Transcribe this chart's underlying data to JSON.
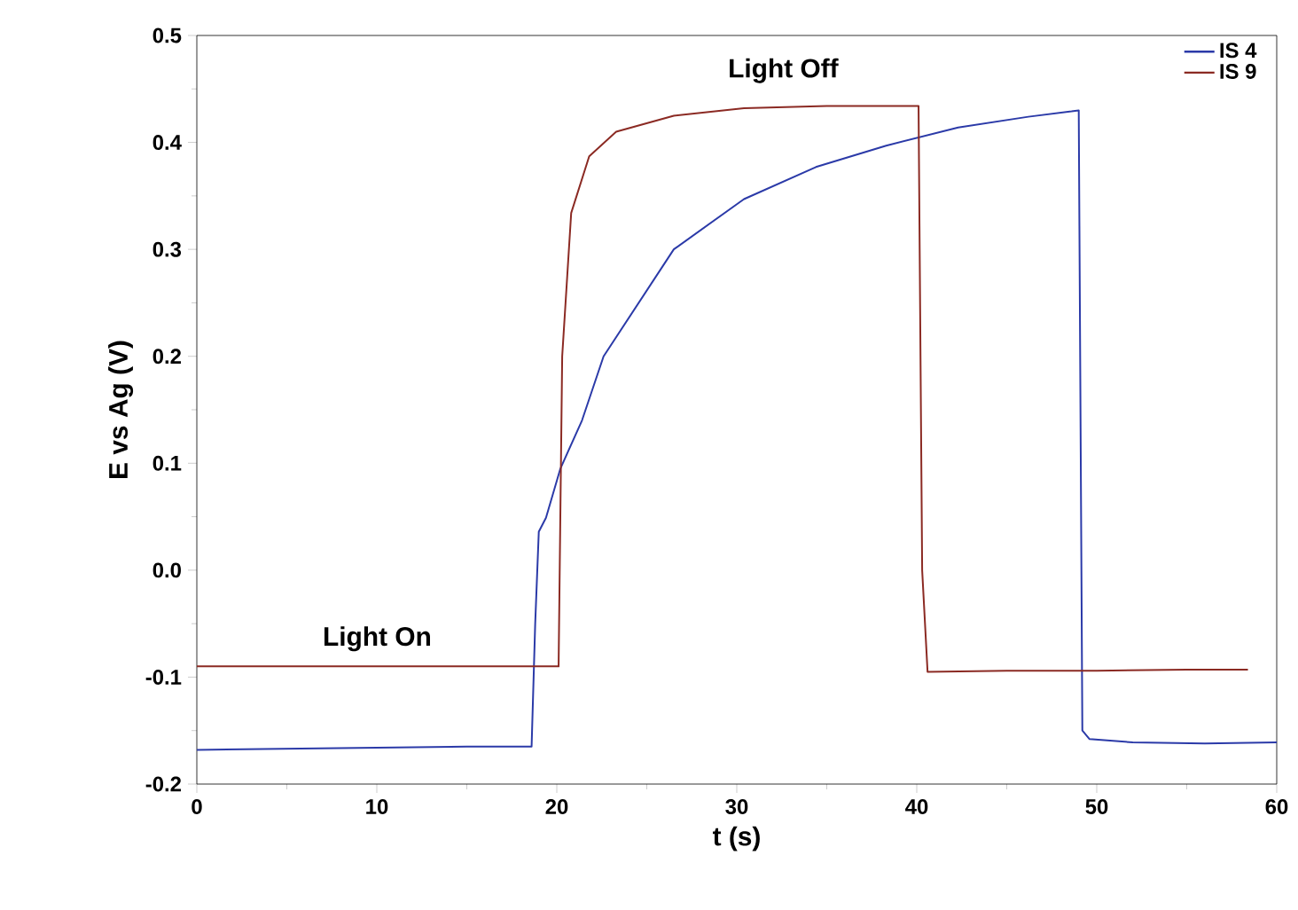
{
  "chart_data": {
    "type": "line",
    "xlabel": "t (s)",
    "ylabel": "E vs Ag (V)",
    "xlim": [
      0,
      60
    ],
    "xticks": [
      0,
      10,
      20,
      30,
      40,
      50,
      60
    ],
    "ylim": [
      -0.2,
      0.5
    ],
    "yticks": [
      -0.2,
      -0.1,
      {
        "value": 0,
        "label": "0.0"
      },
      0.1,
      0.2,
      0.3,
      0.4,
      0.5
    ],
    "legend": "top right",
    "grid": false,
    "marker": "none",
    "line_style": "solid",
    "annotations": [
      "Light On",
      "Light Off"
    ],
    "series": [
      {
        "name": "IS 4",
        "color": "#2b3aa8",
        "x": [
          0,
          5,
          10,
          15,
          18.6,
          18.8,
          19.0,
          19.4,
          20.2,
          21.4,
          22.6,
          26.5,
          30.4,
          34.4,
          38.3,
          42.3,
          46.2,
          48.6,
          49.0,
          49.2,
          49.6,
          52,
          56,
          60
        ],
        "values": [
          -0.168,
          -0.167,
          -0.166,
          -0.165,
          -0.165,
          -0.05,
          0.036,
          0.049,
          0.095,
          0.14,
          0.2,
          0.3,
          0.347,
          0.377,
          0.397,
          0.414,
          0.424,
          0.429,
          0.43,
          -0.15,
          -0.158,
          -0.161,
          -0.162,
          -0.161
        ]
      },
      {
        "name": "IS 9",
        "color": "#8b2a23",
        "x": [
          0,
          5,
          10,
          15,
          20.1,
          20.3,
          20.8,
          21.8,
          23.3,
          26.5,
          30.4,
          35,
          40.1,
          40.3,
          40.6,
          45,
          50,
          55,
          58.4
        ],
        "values": [
          -0.09,
          -0.09,
          -0.09,
          -0.09,
          -0.09,
          0.2,
          0.334,
          0.387,
          0.41,
          0.425,
          0.432,
          0.434,
          0.434,
          0.0,
          -0.095,
          -0.094,
          -0.094,
          -0.093,
          -0.093
        ]
      }
    ]
  }
}
